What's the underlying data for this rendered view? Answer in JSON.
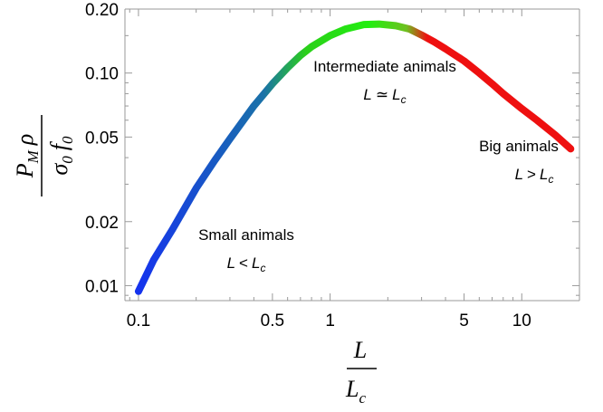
{
  "chart_data": {
    "type": "line",
    "xscale": "log",
    "yscale": "log",
    "xlim": [
      0.085,
      20
    ],
    "ylim": [
      0.0085,
      0.2
    ],
    "grid": false,
    "xticks": [
      {
        "value": 0.1,
        "label": "0.1"
      },
      {
        "value": 0.5,
        "label": "0.5"
      },
      {
        "value": 1,
        "label": "1"
      },
      {
        "value": 5,
        "label": "5"
      },
      {
        "value": 10,
        "label": "10"
      }
    ],
    "yticks": [
      {
        "value": 0.01,
        "label": "0.01"
      },
      {
        "value": 0.02,
        "label": "0.02"
      },
      {
        "value": 0.05,
        "label": "0.05"
      },
      {
        "value": 0.1,
        "label": "0.10"
      },
      {
        "value": 0.2,
        "label": "0.20"
      }
    ],
    "xlabel": {
      "numerator": "L",
      "denominator": "L",
      "denominator_sub": "c"
    },
    "ylabel": {
      "numerator": "P",
      "numerator_sub": "M",
      "numerator_tail": "ρ",
      "denominator": "σ",
      "denominator_sub": "0",
      "denominator_tail": "f",
      "denominator_tail_sub": "0"
    },
    "series": [
      {
        "x": [
          0.1,
          0.12,
          0.15,
          0.2,
          0.25,
          0.3,
          0.4,
          0.5,
          0.6,
          0.7,
          0.8,
          1.0,
          1.2,
          1.5,
          1.8,
          2.2,
          2.6,
          3.0,
          3.5,
          4.0,
          5.0,
          6.0,
          7.0,
          8.0,
          10.0,
          12.0,
          15.0,
          18.0
        ],
        "y": [
          0.0094,
          0.0132,
          0.0183,
          0.0287,
          0.0388,
          0.049,
          0.07,
          0.089,
          0.106,
          0.121,
          0.133,
          0.15,
          0.161,
          0.169,
          0.17,
          0.167,
          0.161,
          0.151,
          0.14,
          0.13,
          0.114,
          0.1,
          0.089,
          0.08,
          0.068,
          0.06,
          0.051,
          0.044
        ],
        "color_stops": [
          {
            "x": 0.1,
            "color": "#1533ee"
          },
          {
            "x": 0.45,
            "color": "#1a72a8"
          },
          {
            "x": 0.75,
            "color": "#2bd01a"
          },
          {
            "x": 1.6,
            "color": "#22ee10"
          },
          {
            "x": 2.5,
            "color": "#6fc020"
          },
          {
            "x": 3.2,
            "color": "#ee1010"
          },
          {
            "x": 18.0,
            "color": "#ee1010"
          }
        ]
      }
    ],
    "annotations": [
      {
        "text": "Small animals",
        "formula": {
          "left": "L",
          "rel": "<",
          "right": "L",
          "sub": "c"
        }
      },
      {
        "text": "Intermediate animals",
        "formula": {
          "left": "L",
          "rel": "≃",
          "right": "L",
          "sub": "c"
        }
      },
      {
        "text": "Big animals",
        "formula": {
          "left": "L",
          "rel": ">",
          "right": "L",
          "sub": "c"
        }
      }
    ]
  }
}
